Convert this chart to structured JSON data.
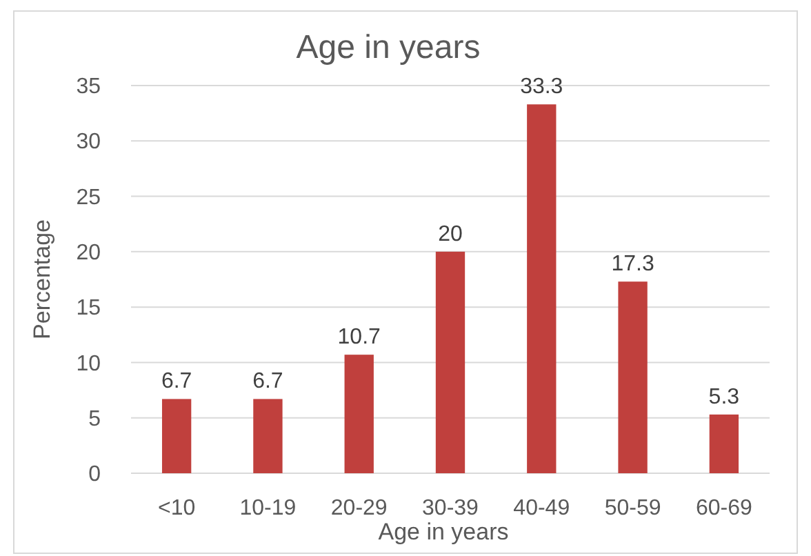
{
  "chart_data": {
    "type": "bar",
    "title": "Age in years",
    "xlabel": "Age in years",
    "ylabel": "Percentage",
    "categories": [
      "<10",
      "10-19",
      "20-29",
      "30-39",
      "40-49",
      "50-59",
      "60-69"
    ],
    "values": [
      6.7,
      6.7,
      10.7,
      20,
      33.3,
      17.3,
      5.3
    ],
    "color": "#c0403d",
    "ylim": [
      0,
      35
    ],
    "yticks": [
      0,
      5,
      10,
      15,
      20,
      25,
      30,
      35
    ],
    "grid": "y",
    "data_labels": true
  }
}
